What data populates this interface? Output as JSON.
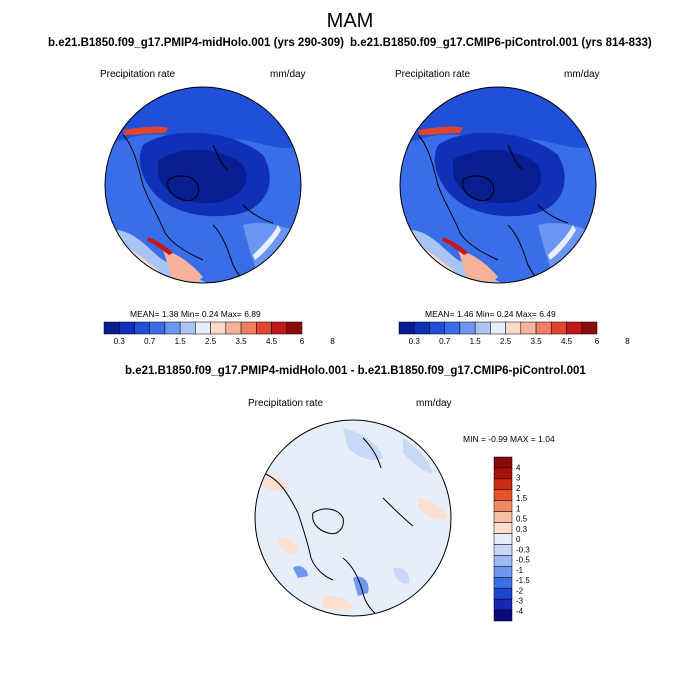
{
  "figure": {
    "title": "MAM",
    "colors": {
      "abs_scale": [
        "#081d8f",
        "#1030b8",
        "#2050d8",
        "#3a6ee8",
        "#6a95f0",
        "#a9c4f5",
        "#e8eefc",
        "#fbd9c8",
        "#f6b39b",
        "#ef7f63",
        "#e0452e",
        "#c2181a",
        "#8c0a0a"
      ],
      "diff_scale": [
        "#0a0a7a",
        "#1428b4",
        "#1f47d6",
        "#3d6ee6",
        "#6f98ef",
        "#9db9f3",
        "#c8d9f7",
        "#e6eefa",
        "#fbe0d0",
        "#f7c0a6",
        "#f08a64",
        "#e6542e",
        "#cc2a12",
        "#a8110a",
        "#880808"
      ]
    }
  },
  "panels": [
    {
      "title": "b.e21.B1850.f09_g17.PMIP4-midHolo.001 (yrs 290-309)",
      "variable": "Precipitation rate",
      "units": "mm/day",
      "stats": {
        "mean_label": "MEAN=",
        "mean": "1.38",
        "min_label": "Min=",
        "min": "0.24",
        "max_label": "Max=",
        "max": "6.89"
      }
    },
    {
      "title": "b.e21.B1850.f09_g17.CMIP6-piControl.001 (yrs 814-833)",
      "variable": "Precipitation rate",
      "units": "mm/day",
      "stats": {
        "mean_label": "MEAN=",
        "mean": "1.46",
        "min_label": "Min=",
        "min": "0.24",
        "max_label": "Max=",
        "max": "6.49"
      }
    },
    {
      "title": "b.e21.B1850.f09_g17.PMIP4-midHolo.001 - b.e21.B1850.f09_g17.CMIP6-piControl.001",
      "variable": "Precipitation rate",
      "units": "mm/day",
      "stats": {
        "min_label": "MIN =",
        "min": "-0.99",
        "max_label": "MAX =",
        "max": "1.04"
      }
    }
  ],
  "chart_data": {
    "type": "heatmap",
    "projection": "north-polar-stereographic",
    "abs_colorbar_labels": [
      "0.3",
      "0.7",
      "1.5",
      "2.5",
      "3.5",
      "4.5",
      "6",
      "8"
    ],
    "diff_colorbar_labels": [
      "4",
      "3",
      "2",
      "1.5",
      "1",
      "0.5",
      "0.3",
      "0",
      "-0.3",
      "-0.5",
      "-1",
      "-1.5",
      "-2",
      "-3",
      "-4"
    ]
  }
}
